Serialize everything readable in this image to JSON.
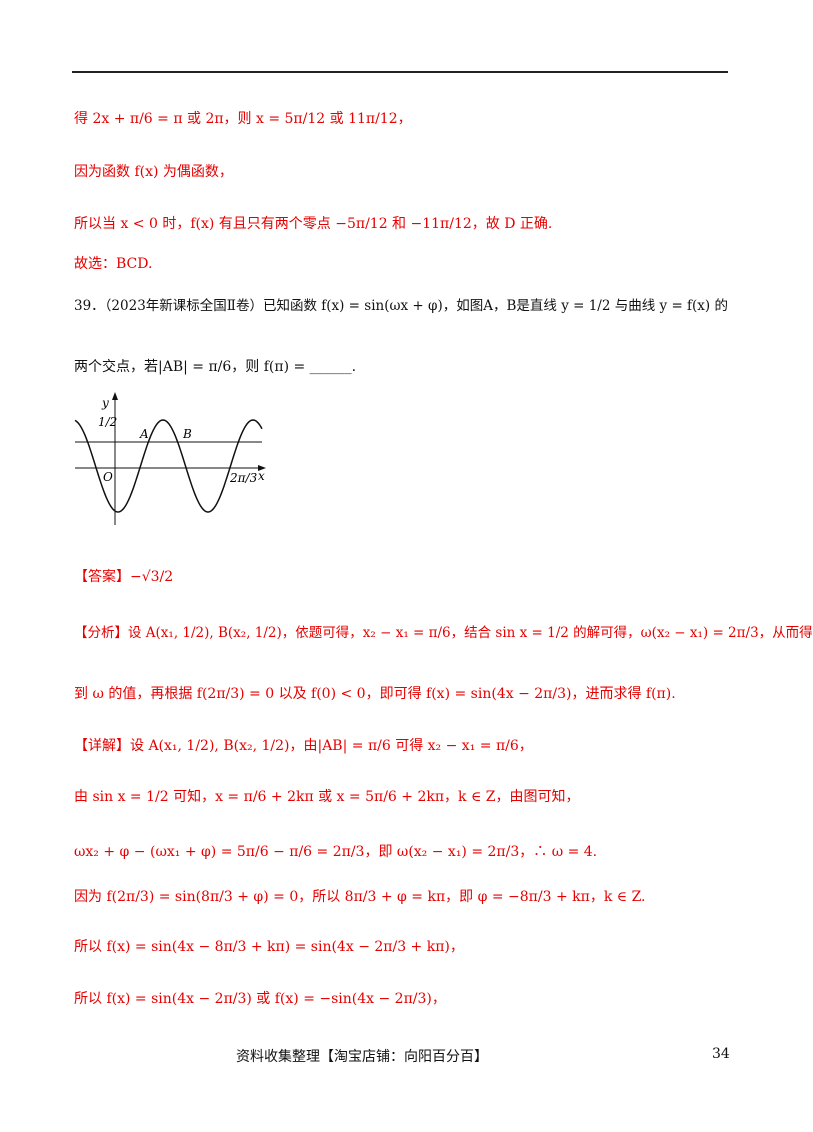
{
  "lines": [
    "得 2x + π/6 = π 或 2π，则 x = 5π/12 或 11π/12，",
    "因为函数 f(x) 为偶函数，",
    "所以当 x < 0 时，f(x) 有且只有两个零点 −5π/12 和 −11π/12，故 D 正确.",
    "故选：BCD."
  ],
  "question": {
    "line1": "39．（2023年新课标全国Ⅱ卷）已知函数 f(x) = sin(ωx + φ)，如图A，B是直线 y = 1/2 与曲线 y = f(x) 的",
    "line2": "两个交点，若|AB| = π/6，则 f(π) = ______."
  },
  "figure": {
    "y_label": "y",
    "half_label": "1/2",
    "a_label": "A",
    "b_label": "B",
    "o_label": "O",
    "x_tick_label": "2π/3",
    "x_label": "x"
  },
  "solution": [
    "【答案】−√3/2",
    "【分析】设 A(x₁, 1/2), B(x₂, 1/2)，依题可得，x₂ − x₁ = π/6，结合 sin x = 1/2 的解可得，ω(x₂ − x₁) = 2π/3，从而得",
    "到 ω 的值，再根据 f(2π/3) = 0 以及 f(0) < 0，即可得 f(x) = sin(4x − 2π/3)，进而求得 f(π).",
    "【详解】设 A(x₁, 1/2), B(x₂, 1/2)，由|AB| = π/6 可得 x₂ − x₁ = π/6，",
    "由 sin x = 1/2 可知，x = π/6 + 2kπ 或 x = 5π/6 + 2kπ，k ∈ Z，由图可知，",
    "ωx₂ + φ − (ωx₁ + φ) = 5π/6 − π/6 = 2π/3，即 ω(x₂ − x₁) = 2π/3，∴ ω = 4.",
    "因为 f(2π/3) = sin(8π/3 + φ) = 0，所以 8π/3 + φ = kπ，即 φ = −8π/3 + kπ，k ∈ Z.",
    "所以 f(x) = sin(4x − 8π/3 + kπ) = sin(4x − 2π/3 + kπ)，",
    "所以 f(x) = sin(4x − 2π/3) 或 f(x) = −sin(4x − 2π/3)，"
  ],
  "footer": {
    "source": "资料收集整理【淘宝店铺：向阳百分百】",
    "page_number": "34"
  }
}
